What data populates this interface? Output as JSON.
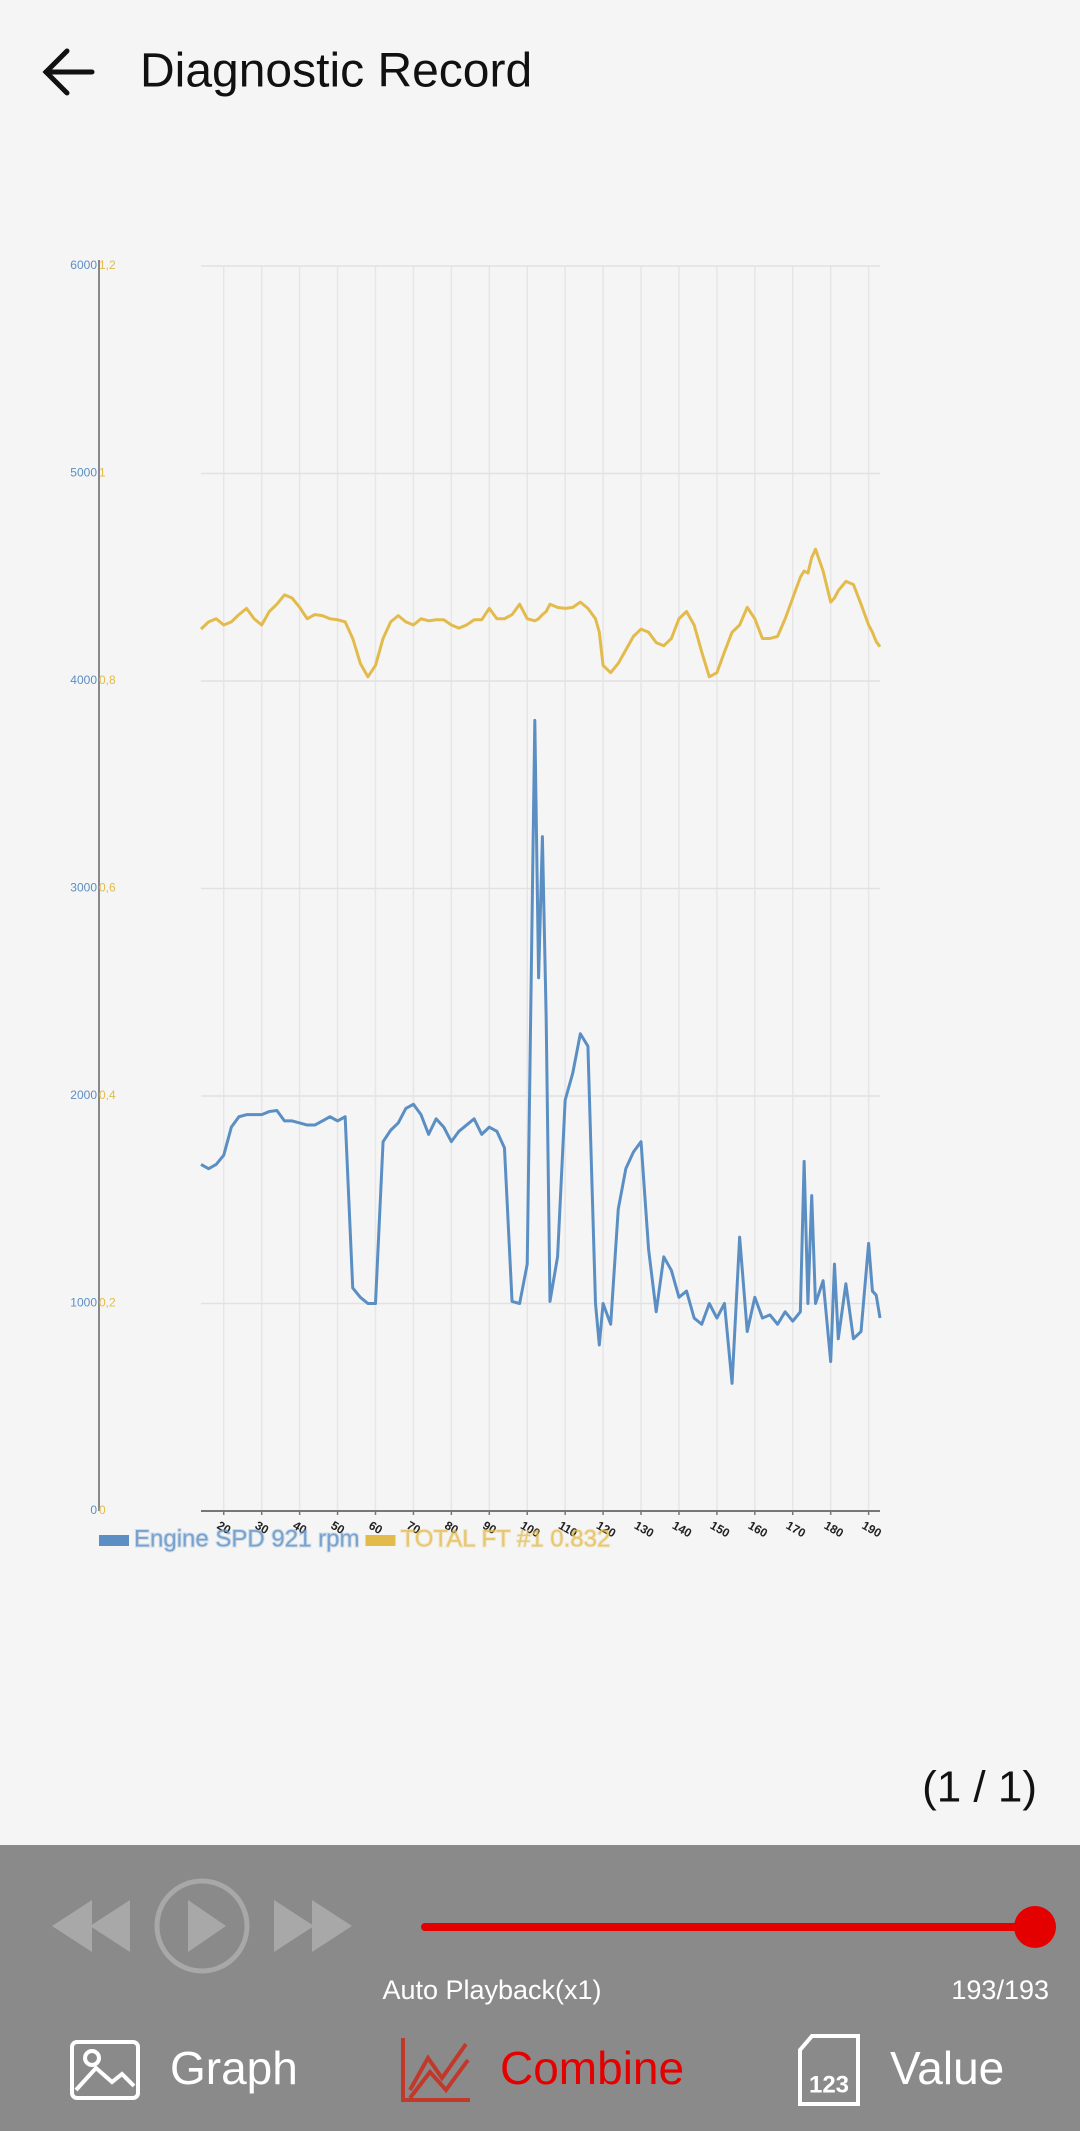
{
  "header": {
    "title": "Diagnostic Record"
  },
  "chart_data": {
    "type": "line",
    "x": [
      14,
      16,
      18,
      20,
      22,
      24,
      26,
      28,
      30,
      32,
      34,
      36,
      38,
      40,
      42,
      44,
      46,
      48,
      50,
      52,
      54,
      56,
      58,
      60,
      62,
      64,
      66,
      68,
      70,
      72,
      74,
      76,
      78,
      80,
      82,
      84,
      86,
      88,
      90,
      92,
      94,
      96,
      98,
      100,
      102,
      103,
      104,
      105,
      106,
      108,
      110,
      112,
      114,
      116,
      118,
      119,
      120,
      122,
      124,
      126,
      128,
      130,
      132,
      134,
      136,
      138,
      140,
      142,
      144,
      146,
      148,
      150,
      152,
      154,
      156,
      158,
      160,
      162,
      164,
      166,
      168,
      170,
      172,
      173,
      174,
      175,
      176,
      178,
      180,
      181,
      182,
      184,
      186,
      188,
      190,
      191,
      192,
      193
    ],
    "series": [
      {
        "name": "Engine SPD 921 rpm",
        "color": "#5b8fc3",
        "values": [
          1670,
          1650,
          1670,
          1715,
          1850,
          1900,
          1910,
          1910,
          1910,
          1925,
          1930,
          1880,
          1880,
          1870,
          1860,
          1860,
          1880,
          1900,
          1880,
          1900,
          1075,
          1030,
          1000,
          1000,
          1780,
          1835,
          1870,
          1940,
          1960,
          1910,
          1815,
          1890,
          1850,
          1780,
          1830,
          1860,
          1890,
          1815,
          1850,
          1830,
          1750,
          1010,
          1000,
          1190,
          3810,
          2570,
          3250,
          2370,
          1010,
          1225,
          1980,
          2110,
          2300,
          2240,
          1000,
          800,
          1000,
          900,
          1455,
          1650,
          1730,
          1780,
          1260,
          960,
          1225,
          1160,
          1030,
          1060,
          930,
          900,
          1000,
          930,
          1000,
          615,
          1320,
          865,
          1030,
          930,
          945,
          900,
          960,
          915,
          960,
          1685,
          1000,
          1520,
          1000,
          1110,
          720,
          1190,
          830,
          1095,
          830,
          865,
          1290,
          1060,
          1040,
          930
        ]
      },
      {
        "name": "TOTAL FT #1 0.832",
        "color": "#e3bb4c",
        "axis": "y2",
        "values": [
          0.85,
          0.857,
          0.86,
          0.854,
          0.857,
          0.864,
          0.87,
          0.86,
          0.854,
          0.867,
          0.874,
          0.883,
          0.88,
          0.871,
          0.86,
          0.864,
          0.863,
          0.86,
          0.859,
          0.857,
          0.841,
          0.817,
          0.804,
          0.815,
          0.841,
          0.857,
          0.863,
          0.857,
          0.854,
          0.86,
          0.858,
          0.859,
          0.859,
          0.854,
          0.851,
          0.854,
          0.859,
          0.859,
          0.87,
          0.86,
          0.86,
          0.864,
          0.874,
          0.86,
          0.858,
          0.86,
          0.864,
          0.867,
          0.874,
          0.871,
          0.87,
          0.871,
          0.876,
          0.87,
          0.86,
          0.847,
          0.815,
          0.808,
          0.817,
          0.83,
          0.843,
          0.85,
          0.847,
          0.837,
          0.834,
          0.841,
          0.86,
          0.867,
          0.854,
          0.828,
          0.804,
          0.808,
          0.828,
          0.847,
          0.854,
          0.871,
          0.86,
          0.841,
          0.841,
          0.843,
          0.86,
          0.88,
          0.9,
          0.906,
          0.904,
          0.919,
          0.927,
          0.906,
          0.876,
          0.88,
          0.887,
          0.896,
          0.893,
          0.874,
          0.854,
          0.847,
          0.838,
          0.833
        ]
      }
    ],
    "xlim": [
      14,
      193
    ],
    "xticks": [
      20,
      30,
      40,
      50,
      60,
      70,
      80,
      90,
      100,
      110,
      120,
      130,
      140,
      150,
      160,
      170,
      180,
      190
    ],
    "ylim": [
      0,
      6000
    ],
    "yticks": [
      0,
      1000,
      2000,
      3000,
      4000,
      5000,
      6000
    ],
    "y2lim": [
      0,
      1.2
    ],
    "y2ticks": [
      0,
      {
        "value": 0.2,
        "label": "0,2"
      },
      {
        "value": 0.4,
        "label": "0,4"
      },
      {
        "value": 0.6,
        "label": "0,6"
      },
      {
        "value": 0.8,
        "label": "0,8"
      },
      1,
      {
        "value": 1.2,
        "label": "1,2"
      }
    ],
    "grid": true
  },
  "page_indicator": "(1 / 1)",
  "playback": {
    "mode": "Auto Playback(x1)",
    "position": "193/193"
  },
  "tabs": [
    {
      "label": "Graph"
    },
    {
      "label": "Combine"
    },
    {
      "label": "Value",
      "icon_text": "123"
    }
  ]
}
